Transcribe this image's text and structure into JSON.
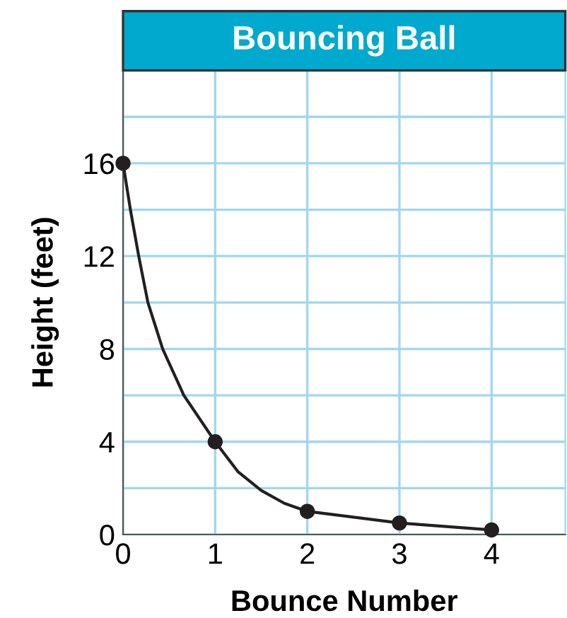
{
  "chart_data": {
    "type": "line",
    "title": "Bouncing Ball",
    "xlabel": "Bounce Number",
    "ylabel": "Height (feet)",
    "x": [
      0,
      1,
      2,
      3,
      4
    ],
    "series": [
      {
        "color": "#231f20",
        "marker": "none",
        "x": [
          0,
          0.08,
          0.17,
          0.27,
          0.43,
          0.66,
          1,
          1.25,
          1.5,
          1.75,
          2,
          3,
          4
        ],
        "values": [
          16,
          14,
          12,
          10,
          8,
          6,
          4,
          2.7,
          1.9,
          1.35,
          1,
          0.5,
          0.2
        ]
      },
      {
        "type": "scatter",
        "color": "#231f20",
        "marker": "circle",
        "values": [
          16,
          4,
          1,
          0.5,
          0.2
        ]
      }
    ],
    "line_style": "solid",
    "xlim": [
      0,
      4.8
    ],
    "ylim": [
      0,
      20
    ],
    "xticks": [
      0,
      1,
      2,
      3,
      4
    ],
    "yticks": [
      0,
      {
        "value": 2,
        "label": null
      },
      4,
      {
        "value": 6,
        "label": null
      },
      8,
      {
        "value": 10,
        "label": null
      },
      12,
      {
        "value": 14,
        "label": null
      },
      16,
      {
        "value": 18,
        "label": null
      },
      {
        "value": 20,
        "label": null
      }
    ],
    "grid": true
  }
}
